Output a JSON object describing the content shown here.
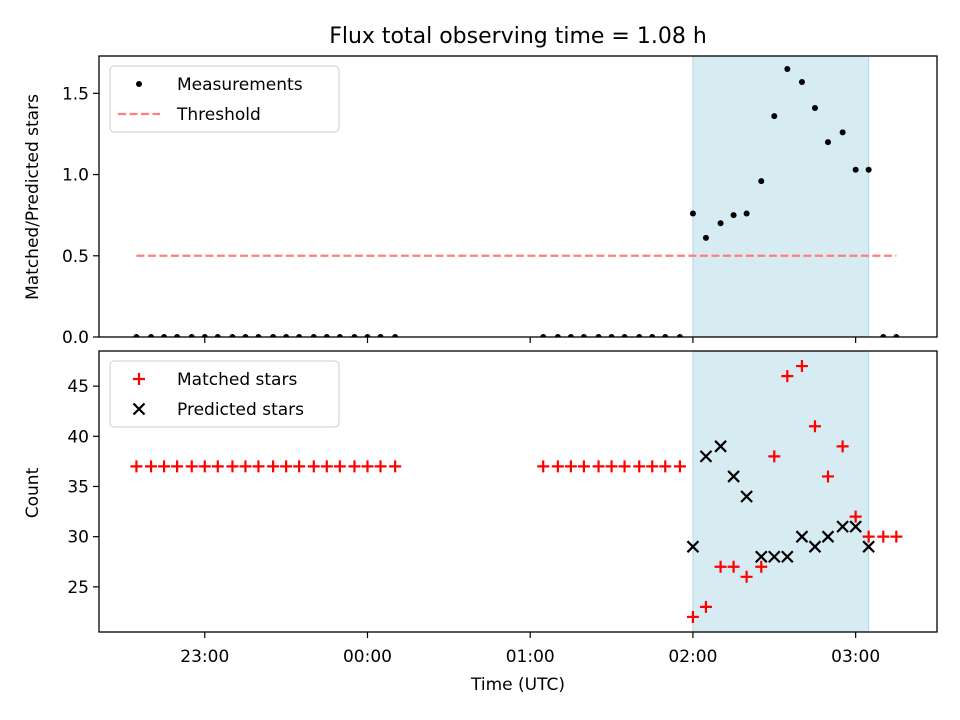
{
  "chart_data": [
    {
      "type": "scatter",
      "title": "Flux total observing time = 1.08 h",
      "ylabel": "Matched/Predicted stars",
      "xlabel": "",
      "ylim": [
        0,
        1.73
      ],
      "yticks": [
        0.0,
        0.5,
        1.0,
        1.5
      ],
      "ytick_labels": [
        "0.0",
        "0.5",
        "1.0",
        "1.5"
      ],
      "xlim_hours": [
        -1.65,
        3.5
      ],
      "shaded_span_hours": [
        2.0,
        3.08
      ],
      "shaded_color": "#add8e6",
      "legend": {
        "placement": "upper-left",
        "entries": [
          "Measurements",
          "Threshold"
        ]
      },
      "threshold": {
        "name": "Threshold",
        "value": 0.5,
        "x_range_hours": [
          -1.42,
          3.25
        ],
        "color": "#ff7f7f",
        "style": "dashed"
      },
      "series": [
        {
          "name": "Measurements",
          "color": "#000000",
          "marker": "dot",
          "points": [
            [
              -1.42,
              0
            ],
            [
              -1.33,
              0
            ],
            [
              -1.25,
              0
            ],
            [
              -1.17,
              0
            ],
            [
              -1.08,
              0
            ],
            [
              -1.0,
              0
            ],
            [
              -0.92,
              0
            ],
            [
              -0.83,
              0
            ],
            [
              -0.75,
              0
            ],
            [
              -0.67,
              0
            ],
            [
              -0.58,
              0
            ],
            [
              -0.5,
              0
            ],
            [
              -0.42,
              0
            ],
            [
              -0.33,
              0
            ],
            [
              -0.25,
              0
            ],
            [
              -0.17,
              0
            ],
            [
              -0.08,
              0
            ],
            [
              0.0,
              0
            ],
            [
              0.08,
              0
            ],
            [
              0.17,
              0
            ],
            [
              1.08,
              0
            ],
            [
              1.17,
              0
            ],
            [
              1.25,
              0
            ],
            [
              1.33,
              0
            ],
            [
              1.42,
              0
            ],
            [
              1.5,
              0
            ],
            [
              1.58,
              0
            ],
            [
              1.67,
              0
            ],
            [
              1.75,
              0
            ],
            [
              1.83,
              0
            ],
            [
              1.92,
              0
            ],
            [
              2.0,
              0.76
            ],
            [
              2.08,
              0.61
            ],
            [
              2.17,
              0.7
            ],
            [
              2.25,
              0.75
            ],
            [
              2.33,
              0.76
            ],
            [
              2.42,
              0.96
            ],
            [
              2.5,
              1.36
            ],
            [
              2.58,
              1.65
            ],
            [
              2.67,
              1.57
            ],
            [
              2.75,
              1.41
            ],
            [
              2.83,
              1.2
            ],
            [
              2.92,
              1.26
            ],
            [
              3.0,
              1.03
            ],
            [
              3.08,
              1.03
            ],
            [
              3.17,
              0
            ],
            [
              3.25,
              0
            ]
          ]
        }
      ]
    },
    {
      "type": "scatter",
      "title": "",
      "xlabel": "Time (UTC)",
      "ylabel": "Count",
      "ylim": [
        20.5,
        48.5
      ],
      "yticks": [
        25,
        30,
        35,
        40,
        45
      ],
      "ytick_labels": [
        "25",
        "30",
        "35",
        "40",
        "45"
      ],
      "xticks_hours": [
        -1,
        0,
        1,
        2,
        3
      ],
      "xtick_labels": [
        "23:00",
        "00:00",
        "01:00",
        "02:00",
        "03:00"
      ],
      "xlim_hours": [
        -1.65,
        3.5
      ],
      "shaded_span_hours": [
        2.0,
        3.08
      ],
      "shaded_color": "#add8e6",
      "legend": {
        "placement": "upper-left",
        "entries": [
          "Matched stars",
          "Predicted stars"
        ]
      },
      "series": [
        {
          "name": "Matched stars",
          "color": "#ff0000",
          "marker": "plus",
          "points": [
            [
              -1.42,
              37
            ],
            [
              -1.33,
              37
            ],
            [
              -1.25,
              37
            ],
            [
              -1.17,
              37
            ],
            [
              -1.08,
              37
            ],
            [
              -1.0,
              37
            ],
            [
              -0.92,
              37
            ],
            [
              -0.83,
              37
            ],
            [
              -0.75,
              37
            ],
            [
              -0.67,
              37
            ],
            [
              -0.58,
              37
            ],
            [
              -0.5,
              37
            ],
            [
              -0.42,
              37
            ],
            [
              -0.33,
              37
            ],
            [
              -0.25,
              37
            ],
            [
              -0.17,
              37
            ],
            [
              -0.08,
              37
            ],
            [
              0.0,
              37
            ],
            [
              0.08,
              37
            ],
            [
              0.17,
              37
            ],
            [
              1.08,
              37
            ],
            [
              1.17,
              37
            ],
            [
              1.25,
              37
            ],
            [
              1.33,
              37
            ],
            [
              1.42,
              37
            ],
            [
              1.5,
              37
            ],
            [
              1.58,
              37
            ],
            [
              1.67,
              37
            ],
            [
              1.75,
              37
            ],
            [
              1.83,
              37
            ],
            [
              1.92,
              37
            ],
            [
              2.0,
              22
            ],
            [
              2.08,
              23
            ],
            [
              2.17,
              27
            ],
            [
              2.25,
              27
            ],
            [
              2.33,
              26
            ],
            [
              2.42,
              27
            ],
            [
              2.5,
              38
            ],
            [
              2.58,
              46
            ],
            [
              2.67,
              47
            ],
            [
              2.75,
              41
            ],
            [
              2.83,
              36
            ],
            [
              2.92,
              39
            ],
            [
              3.0,
              32
            ],
            [
              3.08,
              30
            ],
            [
              3.17,
              30
            ],
            [
              3.25,
              30
            ]
          ]
        },
        {
          "name": "Predicted stars",
          "color": "#000000",
          "marker": "x",
          "points": [
            [
              2.0,
              29
            ],
            [
              2.08,
              38
            ],
            [
              2.17,
              39
            ],
            [
              2.25,
              36
            ],
            [
              2.33,
              34
            ],
            [
              2.42,
              28
            ],
            [
              2.5,
              28
            ],
            [
              2.58,
              28
            ],
            [
              2.67,
              30
            ],
            [
              2.75,
              29
            ],
            [
              2.83,
              30
            ],
            [
              2.92,
              31
            ],
            [
              3.0,
              31
            ],
            [
              3.08,
              29
            ]
          ]
        }
      ]
    }
  ]
}
